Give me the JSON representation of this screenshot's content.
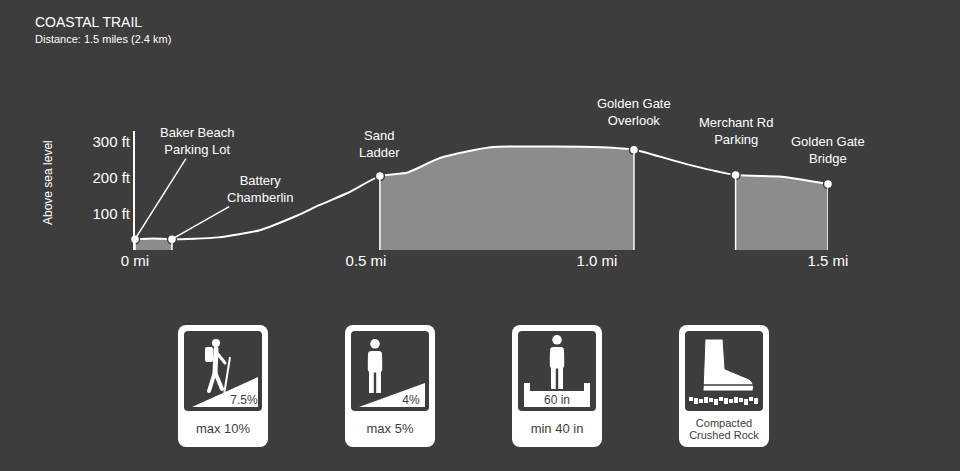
{
  "chart_data": {
    "type": "area",
    "title": "COASTAL TRAIL",
    "subtitle": "Distance: 1.5 miles (2.4 km)",
    "y_label": "Above sea level",
    "x": [
      0,
      0.04,
      0.08,
      0.18,
      0.27,
      0.35,
      0.4,
      0.46,
      0.53,
      0.59,
      0.66,
      0.77,
      0.9,
      1.01,
      1.08,
      1.2,
      1.3,
      1.4,
      1.5
    ],
    "values": [
      30,
      32,
      30,
      35,
      55,
      95,
      125,
      158,
      205,
      215,
      255,
      285,
      287,
      285,
      278,
      236,
      208,
      203,
      183
    ],
    "color": "#ffffff",
    "shaded": [
      [
        0,
        0.08
      ],
      [
        0.53,
        1.08
      ],
      [
        1.3,
        1.5
      ]
    ],
    "waypoints": [
      {
        "text": "Baker Beach\nParking Lot",
        "x": 0,
        "y": 30
      },
      {
        "text": "Battery\nChamberlin",
        "x": 0.08,
        "y": 30
      },
      {
        "text": "Sand\nLadder",
        "x": 0.53,
        "y": 205
      },
      {
        "text": "Golden Gate\nOverlook",
        "x": 1.08,
        "y": 278
      },
      {
        "text": "Merchant Rd\nParking",
        "x": 1.3,
        "y": 208
      },
      {
        "text": "Golden Gate\nBridge",
        "x": 1.5,
        "y": 183
      }
    ],
    "xlim": [
      0,
      1.5
    ],
    "xticks": [
      {
        "value": 0,
        "label": "0 mi"
      },
      {
        "value": 0.5,
        "label": "0.5 mi"
      },
      {
        "value": 1,
        "label": "1.0 mi"
      },
      {
        "value": 1.5,
        "label": "1.5 mi"
      }
    ],
    "ylim": [
      0,
      330
    ],
    "yticks": [
      {
        "value": 100,
        "label": "100 ft"
      },
      {
        "value": 200,
        "label": "200 ft"
      },
      {
        "value": 300,
        "label": "300 ft"
      }
    ],
    "grid": false
  },
  "trail_icons": [
    {
      "figure": "7.5%",
      "caption": "max 10%"
    },
    {
      "figure": "4%",
      "caption": "max 5%"
    },
    {
      "figure": "60 in",
      "caption": "min 40 in"
    },
    {
      "caption": "Compacted\nCrushed Rock"
    }
  ]
}
